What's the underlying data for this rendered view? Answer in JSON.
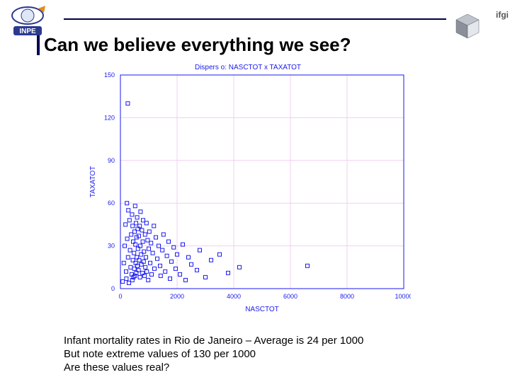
{
  "header": {
    "right_text": "ifgi"
  },
  "title": "Can we believe everything we see?",
  "caption": {
    "line1": "Infant mortality rates in Rio de Janeiro – Average is 24 per 1000",
    "line2": "But note extreme values of 130 per 1000",
    "line3": "Are these values real?"
  },
  "logos": {
    "left": {
      "ellipse_stroke": "#2b3a8f",
      "arrow_fill": "#e38b1e",
      "center_fill": "#dfe6f5",
      "text": "INPE",
      "text_color": "#ffffff",
      "band_fill": "#2b3a8f"
    },
    "right_cube": {
      "top_fill": "#bfc4cc",
      "left_fill": "#8a8f99",
      "right_fill": "#e4e7ec",
      "stroke": "#5a5f6a"
    }
  },
  "chart": {
    "type": "scatter",
    "title": "Dispers  o: NASCTOT x TAXATOT",
    "title_color": "#1a1af0",
    "title_fontsize": 10,
    "xlabel": "NASCTOT",
    "ylabel": "TAXATOT",
    "label_color": "#1a1af0",
    "label_fontsize": 10,
    "axis_color": "#1a1af0",
    "grid_color": "#f0d0f0",
    "background": "#ffffff",
    "marker": "square-open",
    "marker_color": "#1a1af0",
    "marker_size": 5,
    "xlim": [
      0,
      10000
    ],
    "ylim": [
      0,
      150
    ],
    "xticks": [
      0,
      2000,
      4000,
      6000,
      8000,
      10000
    ],
    "yticks": [
      0,
      30,
      60,
      90,
      120,
      150
    ],
    "points": [
      [
        80,
        5
      ],
      [
        120,
        18
      ],
      [
        150,
        30
      ],
      [
        180,
        45
      ],
      [
        200,
        12
      ],
      [
        210,
        7
      ],
      [
        230,
        60
      ],
      [
        240,
        35
      ],
      [
        260,
        130
      ],
      [
        270,
        22
      ],
      [
        280,
        55
      ],
      [
        300,
        4
      ],
      [
        320,
        48
      ],
      [
        340,
        27
      ],
      [
        360,
        15
      ],
      [
        380,
        38
      ],
      [
        400,
        10
      ],
      [
        410,
        52
      ],
      [
        420,
        6
      ],
      [
        430,
        44
      ],
      [
        440,
        20
      ],
      [
        450,
        33
      ],
      [
        460,
        8
      ],
      [
        480,
        25
      ],
      [
        490,
        14
      ],
      [
        500,
        40
      ],
      [
        510,
        9
      ],
      [
        520,
        58
      ],
      [
        530,
        31
      ],
      [
        540,
        18
      ],
      [
        550,
        46
      ],
      [
        560,
        11
      ],
      [
        570,
        36
      ],
      [
        580,
        22
      ],
      [
        590,
        50
      ],
      [
        600,
        16
      ],
      [
        610,
        42
      ],
      [
        620,
        28
      ],
      [
        640,
        13
      ],
      [
        650,
        37
      ],
      [
        660,
        20
      ],
      [
        680,
        44
      ],
      [
        690,
        8
      ],
      [
        700,
        30
      ],
      [
        710,
        54
      ],
      [
        730,
        24
      ],
      [
        740,
        17
      ],
      [
        760,
        41
      ],
      [
        780,
        11
      ],
      [
        790,
        33
      ],
      [
        800,
        48
      ],
      [
        820,
        19
      ],
      [
        830,
        26
      ],
      [
        850,
        9
      ],
      [
        870,
        38
      ],
      [
        880,
        15
      ],
      [
        900,
        22
      ],
      [
        920,
        46
      ],
      [
        930,
        12
      ],
      [
        960,
        34
      ],
      [
        980,
        6
      ],
      [
        1000,
        28
      ],
      [
        1020,
        40
      ],
      [
        1050,
        18
      ],
      [
        1080,
        32
      ],
      [
        1100,
        10
      ],
      [
        1140,
        25
      ],
      [
        1180,
        44
      ],
      [
        1200,
        14
      ],
      [
        1250,
        36
      ],
      [
        1300,
        21
      ],
      [
        1350,
        30
      ],
      [
        1400,
        16
      ],
      [
        1420,
        9
      ],
      [
        1480,
        27
      ],
      [
        1520,
        38
      ],
      [
        1580,
        12
      ],
      [
        1640,
        23
      ],
      [
        1700,
        33
      ],
      [
        1750,
        7
      ],
      [
        1800,
        19
      ],
      [
        1880,
        29
      ],
      [
        1950,
        14
      ],
      [
        2000,
        24
      ],
      [
        2100,
        10
      ],
      [
        2200,
        31
      ],
      [
        2300,
        6
      ],
      [
        2400,
        22
      ],
      [
        2500,
        17
      ],
      [
        2700,
        13
      ],
      [
        2800,
        27
      ],
      [
        3000,
        8
      ],
      [
        3200,
        20
      ],
      [
        3500,
        24
      ],
      [
        3800,
        11
      ],
      [
        4200,
        15
      ],
      [
        6600,
        16
      ]
    ]
  }
}
